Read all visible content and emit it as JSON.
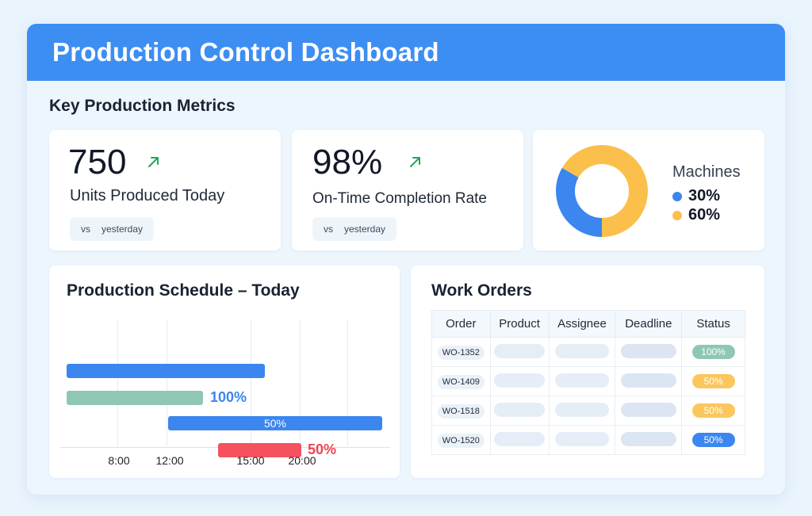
{
  "header": {
    "title": "Production Control Dashboard"
  },
  "metrics_section": {
    "title": "Key Production Metrics"
  },
  "metrics": [
    {
      "value": "750",
      "label": "Units Produced Today",
      "compare_vs": "vs",
      "compare_period": "yesterday",
      "trend": "up"
    },
    {
      "value": "98%",
      "label": "On-Time Completion Rate",
      "compare_vs": "vs",
      "compare_period": "yesterday",
      "trend": "up"
    }
  ],
  "machines": {
    "title": "Machines",
    "slices": [
      {
        "label": "30%",
        "value": 30,
        "color": "#3b86ef"
      },
      {
        "label": "60%",
        "value": 60,
        "color": "#fbbf4c"
      }
    ]
  },
  "schedule": {
    "title": "Production Schedule – Today",
    "ticks": [
      "8:00",
      "12:00",
      "15:00",
      "20:00"
    ],
    "bars": [
      {
        "color": "#3b86ef",
        "label": "",
        "label_color": "#3b86ef",
        "label_inside": false,
        "row": 0
      },
      {
        "color": "#8fc7b4",
        "label": "100%",
        "label_color": "#3b86ef",
        "label_inside": false,
        "row": 1
      },
      {
        "color": "#3b86ef",
        "label": "50%",
        "label_color": "#ffffff",
        "label_inside": true,
        "row": 2
      },
      {
        "color": "#f5515f",
        "label": "50%",
        "label_color": "#ef4455",
        "label_inside": false,
        "row": 3
      }
    ]
  },
  "work_orders": {
    "title": "Work Orders",
    "columns": [
      "Order",
      "Product",
      "Assignee",
      "Deadline",
      "Status"
    ],
    "rows": [
      {
        "order": "WO-1352",
        "status": "100%",
        "status_bg": "#8fc7b4",
        "status_fg": "#ffffff"
      },
      {
        "order": "WO-1409",
        "status": "50%",
        "status_bg": "#fbc65c",
        "status_fg": "#ffffff"
      },
      {
        "order": "WO-1518",
        "status": "50%",
        "status_bg": "#fbc65c",
        "status_fg": "#ffffff"
      },
      {
        "order": "WO-1520",
        "status": "50%",
        "status_bg": "#3b86ef",
        "status_fg": "#ffffff"
      }
    ]
  },
  "colors": {
    "accent": "#3d8ef2",
    "positive": "#22a55a"
  }
}
